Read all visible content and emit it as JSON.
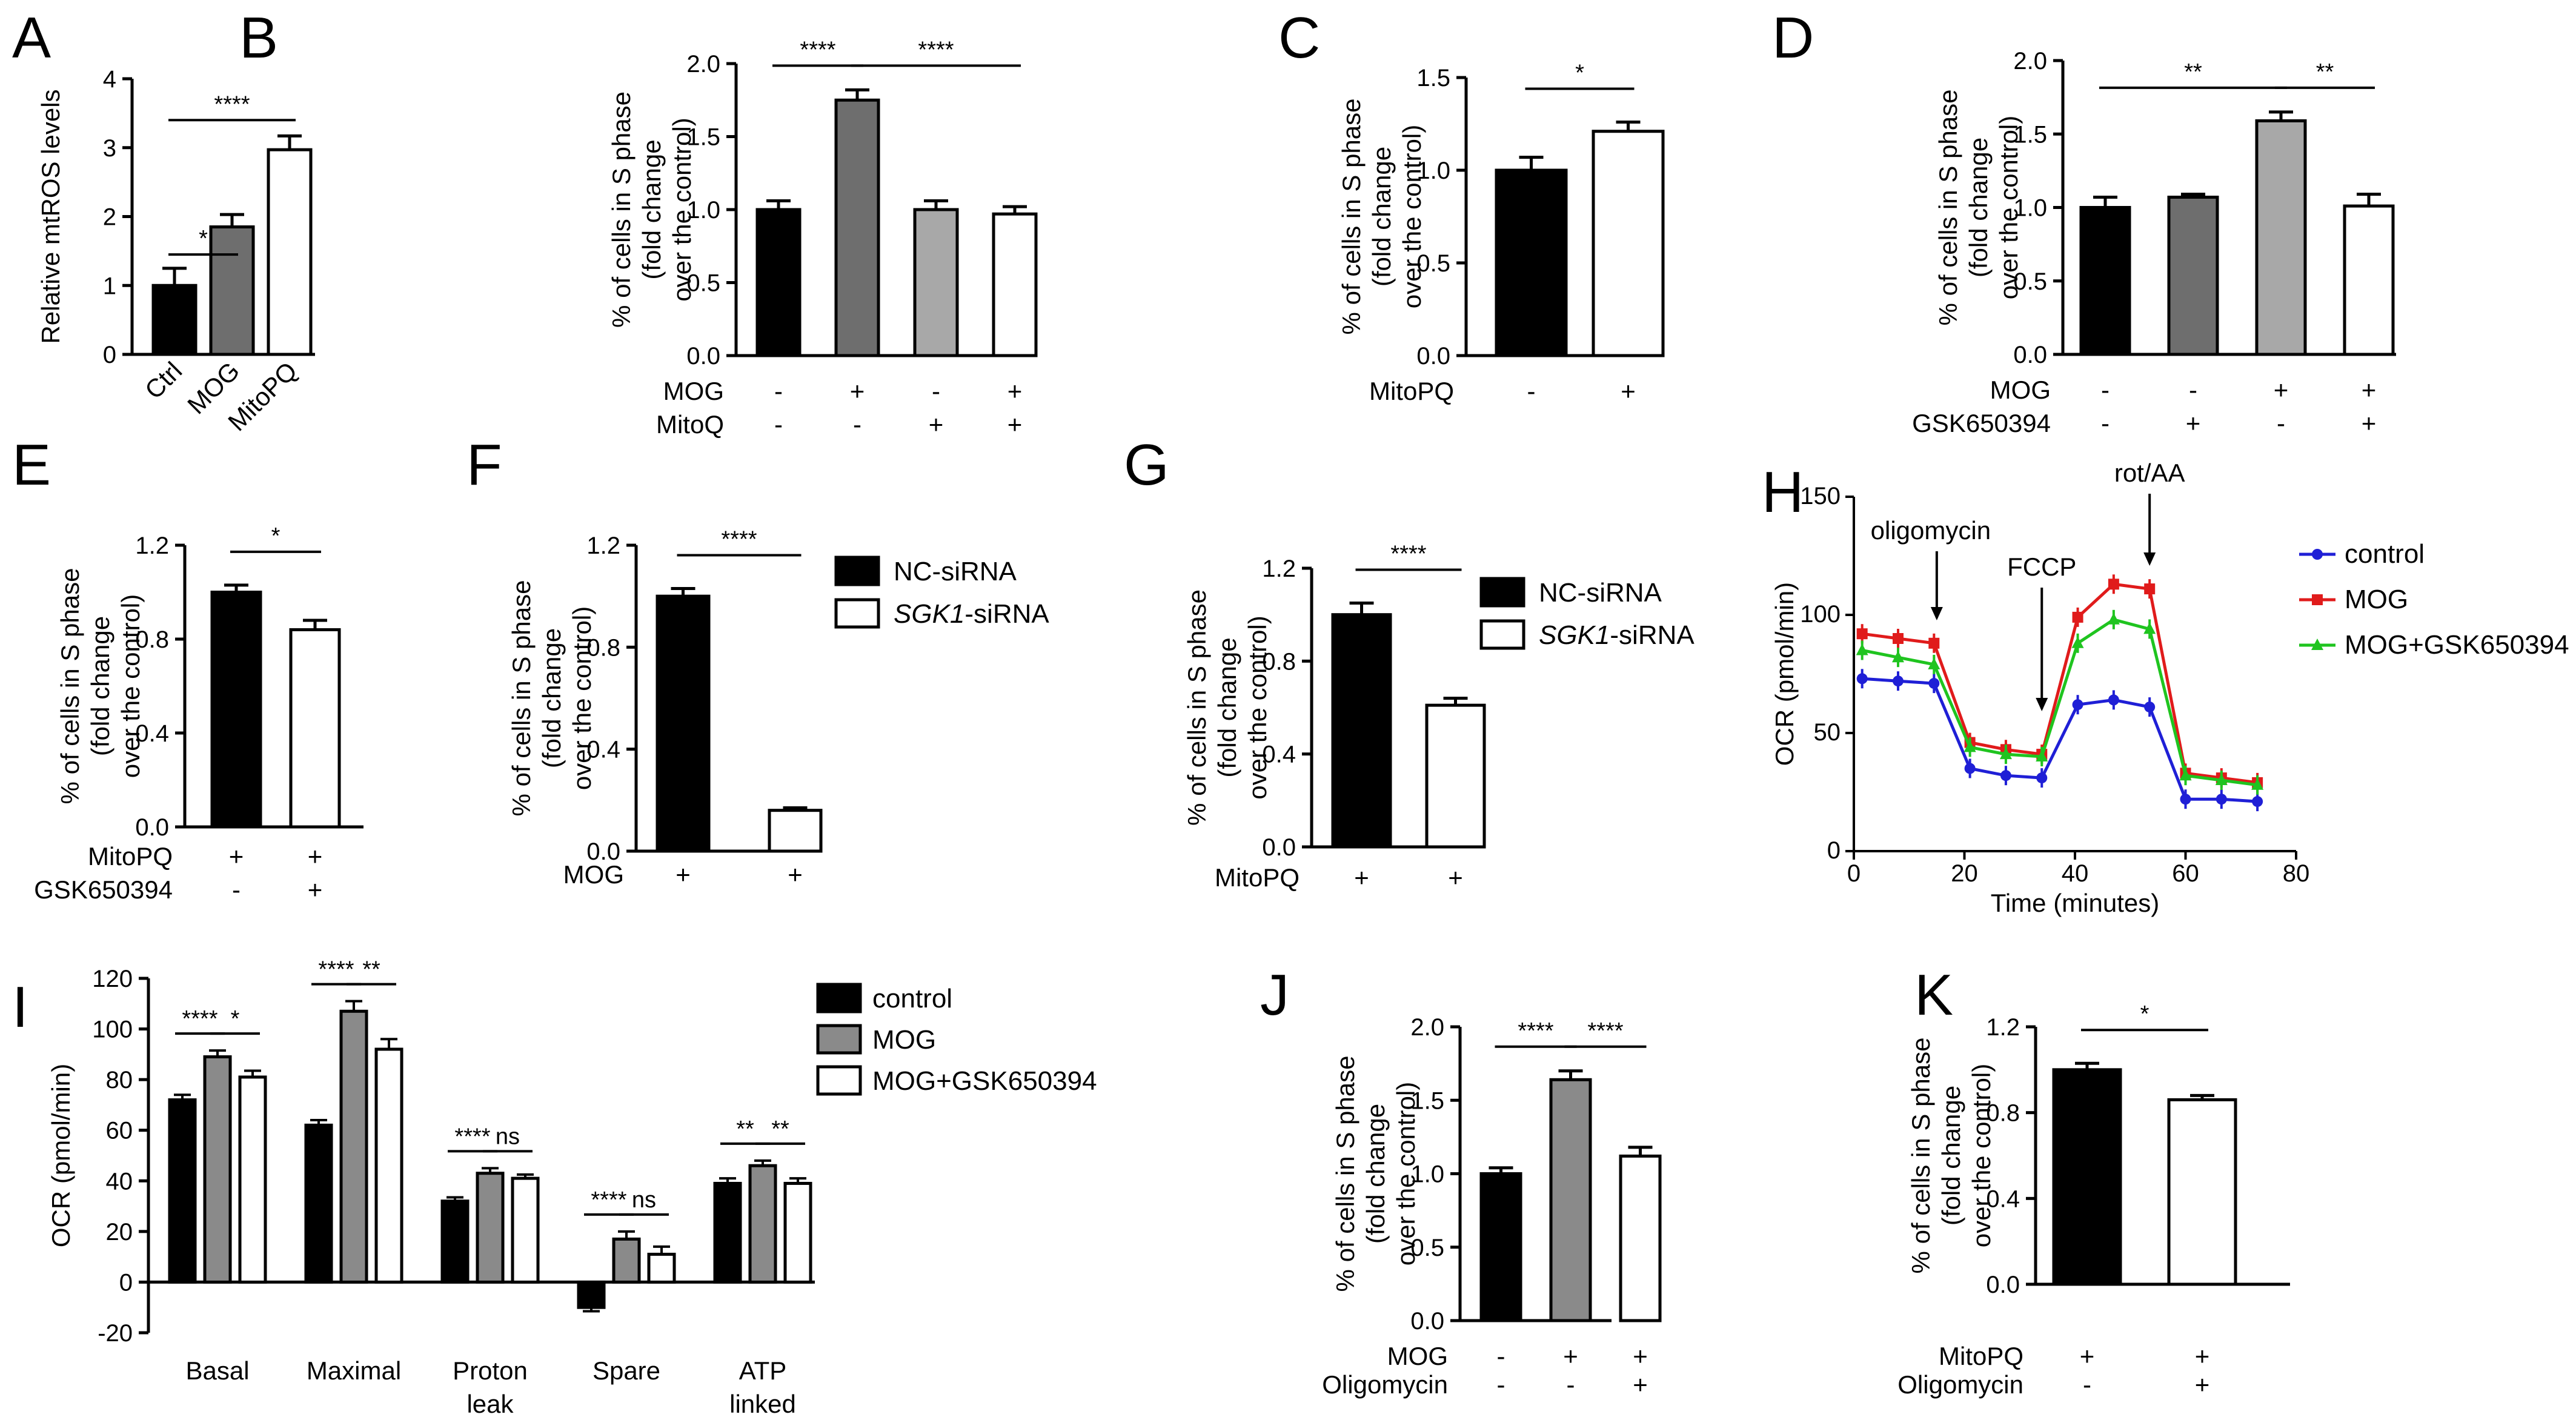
{
  "chart_data": [
    {
      "panel": "A",
      "type": "bar",
      "ylabel": "Relative mtROS levels",
      "ylim": [
        0,
        4
      ],
      "yticks": [
        "0",
        "1",
        "2",
        "3",
        "4"
      ],
      "categories": [
        "Ctrl",
        "MOG",
        "MitoPQ"
      ],
      "values": [
        1.0,
        1.85,
        2.97
      ],
      "errors": [
        0.25,
        0.18,
        0.2
      ],
      "colors": [
        "#000000",
        "#6e6e6e",
        "#ffffff"
      ],
      "sig": [
        {
          "from": 0,
          "to": 1,
          "label": "*"
        },
        {
          "from": 0,
          "to": 2,
          "label": "****"
        }
      ]
    },
    {
      "panel": "B",
      "type": "bar",
      "ylabel": [
        "% of cells in S phase",
        "(fold change",
        "over the control)"
      ],
      "ylim": [
        0,
        2
      ],
      "yticks": [
        "0.0",
        "0.5",
        "1.0",
        "1.5",
        "2.0"
      ],
      "values": [
        1.0,
        1.75,
        1.0,
        0.97
      ],
      "errors": [
        0.06,
        0.07,
        0.06,
        0.05
      ],
      "colors": [
        "#000000",
        "#6e6e6e",
        "#a8a8a8",
        "#ffffff"
      ],
      "factors": [
        {
          "name": "MOG",
          "signs": [
            "-",
            "+",
            "-",
            "+"
          ]
        },
        {
          "name": "MitoQ",
          "signs": [
            "-",
            "-",
            "+",
            "+"
          ]
        }
      ],
      "sig": [
        {
          "from": 0,
          "to": 1,
          "label": "****"
        },
        {
          "from": 1,
          "to": 3,
          "label": "****"
        }
      ]
    },
    {
      "panel": "C",
      "type": "bar",
      "ylabel": [
        "% of cells in S phase",
        "(fold change",
        "over the control)"
      ],
      "ylim": [
        0,
        1.5
      ],
      "yticks": [
        "0.0",
        "0.5",
        "1.0",
        "1.5"
      ],
      "values": [
        1.0,
        1.21
      ],
      "errors": [
        0.07,
        0.05
      ],
      "colors": [
        "#000000",
        "#ffffff"
      ],
      "factors": [
        {
          "name": "MitoPQ",
          "signs": [
            "-",
            "+"
          ]
        }
      ],
      "sig": [
        {
          "from": 0,
          "to": 1,
          "label": "*"
        }
      ]
    },
    {
      "panel": "D",
      "type": "bar",
      "ylabel": [
        "% of cells in S phase",
        "(fold change",
        "over the control)"
      ],
      "ylim": [
        0,
        2
      ],
      "yticks": [
        "0.0",
        "0.5",
        "1.0",
        "1.5",
        "2.0"
      ],
      "values": [
        1.0,
        1.07,
        1.59,
        1.01
      ],
      "errors": [
        0.07,
        0.02,
        0.06,
        0.08
      ],
      "colors": [
        "#000000",
        "#6e6e6e",
        "#a8a8a8",
        "#ffffff"
      ],
      "factors": [
        {
          "name": "MOG",
          "signs": [
            "-",
            "-",
            "+",
            "+"
          ]
        },
        {
          "name": "GSK650394",
          "signs": [
            "-",
            "+",
            "-",
            "+"
          ]
        }
      ],
      "sig": [
        {
          "from": 0,
          "to": 2,
          "label": "**"
        },
        {
          "from": 2,
          "to": 3,
          "label": "**"
        }
      ]
    },
    {
      "panel": "E",
      "type": "bar",
      "ylabel": [
        "% of cells in S phase",
        "(fold change",
        "over the control)"
      ],
      "ylim": [
        0,
        1.2
      ],
      "yticks": [
        "0.0",
        "0.4",
        "0.8",
        "1.2"
      ],
      "values": [
        1.0,
        0.84
      ],
      "errors": [
        0.03,
        0.04
      ],
      "colors": [
        "#000000",
        "#ffffff"
      ],
      "factors": [
        {
          "name": "MitoPQ",
          "signs": [
            "+",
            "+"
          ]
        },
        {
          "name": "GSK650394",
          "signs": [
            "-",
            "+"
          ]
        }
      ],
      "sig": [
        {
          "from": 0,
          "to": 1,
          "label": "*"
        }
      ]
    },
    {
      "panel": "F",
      "type": "bar",
      "ylabel": [
        "% of cells in S phase",
        "(fold change",
        "over the control)"
      ],
      "ylim": [
        0,
        1.2
      ],
      "yticks": [
        "0.0",
        "0.4",
        "0.8",
        "1.2"
      ],
      "values": [
        1.0,
        0.16
      ],
      "errors": [
        0.03,
        0.01
      ],
      "colors": [
        "#000000",
        "#ffffff"
      ],
      "factors": [
        {
          "name": "MOG",
          "signs": [
            "+",
            "+"
          ]
        }
      ],
      "sig": [
        {
          "from": 0,
          "to": 1,
          "label": "****"
        }
      ],
      "legend": [
        {
          "name": "NC-siRNA",
          "color": "#000000"
        },
        {
          "italic": "SGK1",
          "name": "-siRNA",
          "color": "#ffffff"
        }
      ]
    },
    {
      "panel": "G",
      "type": "bar",
      "ylabel": [
        "% of cells in S phase",
        "(fold change",
        "over the control)"
      ],
      "ylim": [
        0,
        1.2
      ],
      "yticks": [
        "0.0",
        "0.4",
        "0.8",
        "1.2"
      ],
      "values": [
        1.0,
        0.61
      ],
      "errors": [
        0.05,
        0.03
      ],
      "colors": [
        "#000000",
        "#ffffff"
      ],
      "factors": [
        {
          "name": "MitoPQ",
          "signs": [
            "+",
            "+"
          ]
        }
      ],
      "sig": [
        {
          "from": 0,
          "to": 1,
          "label": "****"
        }
      ],
      "legend": [
        {
          "name": "NC-siRNA",
          "color": "#000000"
        },
        {
          "italic": "SGK1",
          "name": "-siRNA",
          "color": "#ffffff"
        }
      ]
    },
    {
      "panel": "H",
      "type": "line",
      "xlabel": "Time (minutes)",
      "ylabel": "OCR (pmol/min)",
      "xlim": [
        0,
        80
      ],
      "ylim": [
        0,
        150
      ],
      "xticks": [
        "0",
        "20",
        "40",
        "60",
        "80"
      ],
      "yticks": [
        "0",
        "50",
        "100",
        "150"
      ],
      "x": [
        1.5,
        8,
        14.5,
        21,
        27.5,
        34,
        40.5,
        47,
        53.5,
        60,
        66.5,
        73
      ],
      "series": [
        {
          "name": "control",
          "color": "#1f1fd6",
          "marker": "circle",
          "values": [
            73,
            72,
            71,
            35,
            32,
            31,
            62,
            64,
            61,
            22,
            22,
            21
          ]
        },
        {
          "name": "MOG",
          "color": "#e01b1b",
          "marker": "square",
          "values": [
            92,
            90,
            88,
            46,
            43,
            41,
            99,
            113,
            111,
            33,
            31,
            29
          ]
        },
        {
          "name": "MOG+GSK650394",
          "color": "#1fc41f",
          "marker": "triangle",
          "values": [
            85,
            82,
            79,
            44,
            41,
            40,
            88,
            98,
            94,
            32,
            30,
            28
          ]
        }
      ],
      "annotations": [
        {
          "text": "oligomycin",
          "x": 15
        },
        {
          "text": "FCCP",
          "x": 34
        },
        {
          "text": "rot/AA",
          "x": 53.5
        }
      ]
    },
    {
      "panel": "I",
      "type": "bar",
      "ylabel": "OCR (pmol/min)",
      "ylim": [
        -20,
        120
      ],
      "yticks": [
        "-20",
        "0",
        "20",
        "40",
        "60",
        "80",
        "100",
        "120"
      ],
      "categories": [
        "Basal",
        "Maximal",
        "Proton leak",
        "Spare",
        "ATP linked"
      ],
      "series": [
        {
          "name": "control",
          "color": "#000000",
          "values": [
            72,
            62,
            32,
            -10,
            39
          ],
          "errors": [
            2,
            2,
            1.5,
            1.5,
            2
          ]
        },
        {
          "name": "MOG",
          "color": "#8a8a8a",
          "values": [
            89,
            107,
            43,
            17,
            46
          ],
          "errors": [
            2.5,
            4,
            2,
            3,
            2
          ]
        },
        {
          "name": "MOG+GSK650394",
          "color": "#ffffff",
          "values": [
            81,
            92,
            41,
            11,
            39
          ],
          "errors": [
            2.5,
            4,
            1.5,
            3,
            2
          ]
        }
      ],
      "sig": [
        [
          "****",
          "*"
        ],
        [
          "****",
          "**"
        ],
        [
          "****",
          "ns"
        ],
        [
          "****",
          "ns"
        ],
        [
          "**",
          "**"
        ]
      ]
    },
    {
      "panel": "J",
      "type": "bar",
      "ylabel": [
        "% of cells in S phase",
        "(fold change",
        "over the control)"
      ],
      "ylim": [
        0,
        2
      ],
      "yticks": [
        "0.0",
        "0.5",
        "1.0",
        "1.5",
        "2.0"
      ],
      "values": [
        1.0,
        1.64,
        1.12
      ],
      "errors": [
        0.04,
        0.06,
        0.06
      ],
      "colors": [
        "#000000",
        "#8a8a8a",
        "#ffffff"
      ],
      "factors": [
        {
          "name": "MOG",
          "signs": [
            "-",
            "+",
            "+"
          ]
        },
        {
          "name": "Oligomycin",
          "signs": [
            "-",
            "-",
            "+"
          ]
        }
      ],
      "sig": [
        {
          "from": 0,
          "to": 1,
          "label": "****"
        },
        {
          "from": 1,
          "to": 2,
          "label": "****"
        }
      ]
    },
    {
      "panel": "K",
      "type": "bar",
      "ylabel": [
        "% of cells in S phase",
        "(fold change",
        "over the control)"
      ],
      "ylim": [
        0,
        1.2
      ],
      "yticks": [
        "0.0",
        "0.4",
        "0.8",
        "1.2"
      ],
      "values": [
        1.0,
        0.86
      ],
      "errors": [
        0.03,
        0.02
      ],
      "colors": [
        "#000000",
        "#ffffff"
      ],
      "factors": [
        {
          "name": "MitoPQ",
          "signs": [
            "+",
            "+"
          ]
        },
        {
          "name": "Oligomycin",
          "signs": [
            "-",
            "+"
          ]
        }
      ],
      "sig": [
        {
          "from": 0,
          "to": 1,
          "label": "*"
        }
      ]
    }
  ]
}
